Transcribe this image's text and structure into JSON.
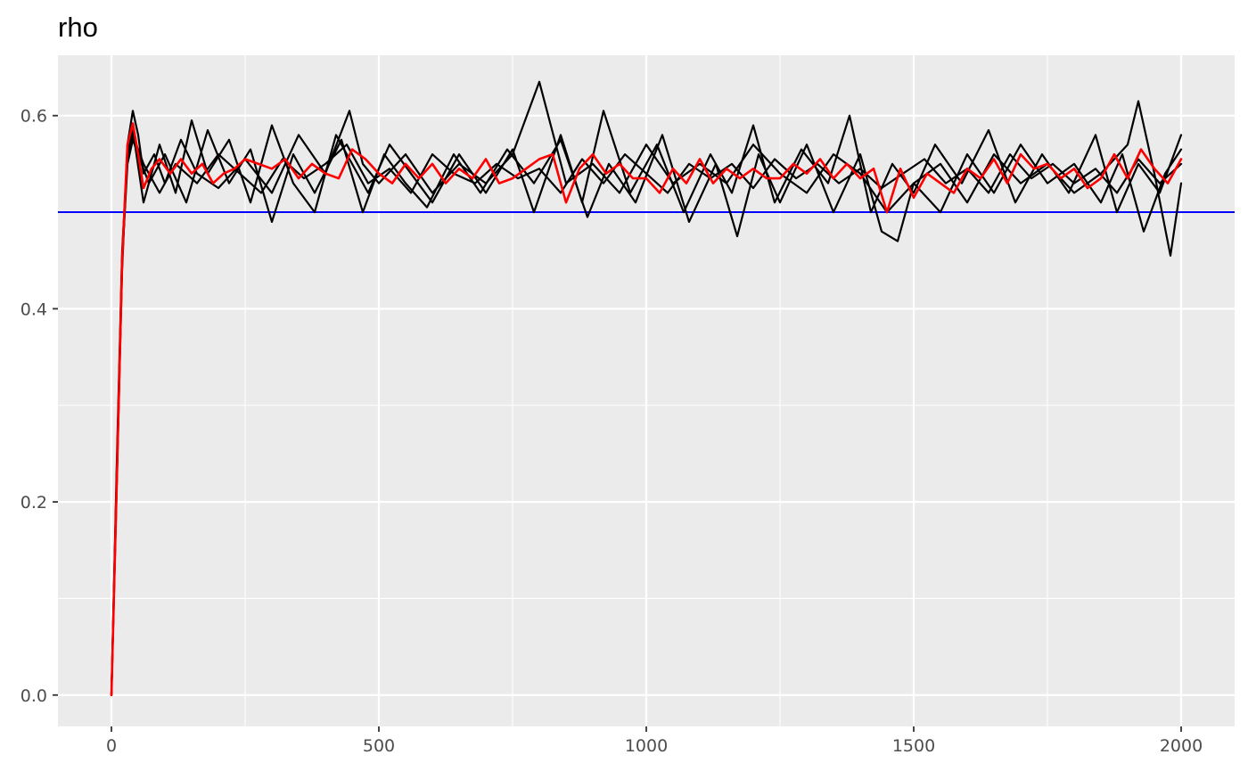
{
  "chart_data": {
    "type": "line",
    "title": "rho",
    "xlabel": "",
    "ylabel": "",
    "xlim": [
      -100,
      2100
    ],
    "ylim": [
      -0.0325,
      0.6625
    ],
    "x_ticks": [
      0,
      500,
      1000,
      1500,
      2000
    ],
    "x_tick_labels": [
      "0",
      "500",
      "1000",
      "1500",
      "2000"
    ],
    "y_ticks": [
      0.0,
      0.2,
      0.4,
      0.6
    ],
    "y_tick_labels": [
      "0.0",
      "0.2",
      "0.4",
      "0.6"
    ],
    "grid": true,
    "legend": "none",
    "reference_line": {
      "y": 0.5,
      "color": "#0000ff"
    },
    "series": [
      {
        "color": "#000000",
        "x": [
          0,
          10,
          20,
          30,
          40,
          50,
          60,
          80,
          100,
          130,
          160,
          200,
          250,
          300,
          350,
          400,
          445,
          470,
          500,
          550,
          600,
          650,
          700,
          750,
          800,
          850,
          900,
          950,
          1000,
          1050,
          1100,
          1150,
          1200,
          1250,
          1300,
          1350,
          1400,
          1450,
          1500,
          1550,
          1600,
          1650,
          1700,
          1750,
          1800,
          1850,
          1900,
          1920,
          1950,
          1980,
          2000
        ],
        "y": [
          0.0,
          0.22,
          0.44,
          0.57,
          0.605,
          0.58,
          0.54,
          0.56,
          0.53,
          0.575,
          0.54,
          0.525,
          0.555,
          0.52,
          0.58,
          0.54,
          0.605,
          0.55,
          0.53,
          0.56,
          0.52,
          0.55,
          0.53,
          0.56,
          0.635,
          0.53,
          0.55,
          0.52,
          0.57,
          0.53,
          0.55,
          0.53,
          0.57,
          0.54,
          0.52,
          0.56,
          0.54,
          0.5,
          0.53,
          0.55,
          0.51,
          0.56,
          0.53,
          0.55,
          0.52,
          0.54,
          0.57,
          0.615,
          0.54,
          0.455,
          0.53
        ]
      },
      {
        "color": "#000000",
        "x": [
          0,
          10,
          20,
          30,
          40,
          60,
          90,
          120,
          150,
          180,
          220,
          260,
          300,
          340,
          380,
          420,
          450,
          480,
          520,
          560,
          600,
          650,
          700,
          750,
          790,
          840,
          880,
          920,
          970,
          1020,
          1070,
          1120,
          1160,
          1200,
          1240,
          1290,
          1340,
          1380,
          1420,
          1460,
          1500,
          1540,
          1590,
          1640,
          1690,
          1740,
          1790,
          1840,
          1880,
          1920,
          1960,
          2000
        ],
        "y": [
          0.0,
          0.24,
          0.46,
          0.56,
          0.585,
          0.51,
          0.57,
          0.52,
          0.595,
          0.54,
          0.575,
          0.51,
          0.59,
          0.53,
          0.5,
          0.58,
          0.55,
          0.52,
          0.57,
          0.54,
          0.51,
          0.56,
          0.52,
          0.565,
          0.5,
          0.58,
          0.51,
          0.605,
          0.52,
          0.57,
          0.5,
          0.56,
          0.52,
          0.59,
          0.51,
          0.565,
          0.53,
          0.6,
          0.5,
          0.55,
          0.52,
          0.57,
          0.53,
          0.585,
          0.51,
          0.56,
          0.52,
          0.58,
          0.5,
          0.55,
          0.52,
          0.58
        ]
      },
      {
        "color": "#000000",
        "x": [
          0,
          10,
          20,
          30,
          40,
          70,
          100,
          140,
          180,
          220,
          260,
          300,
          340,
          380,
          430,
          470,
          510,
          550,
          590,
          640,
          690,
          740,
          790,
          840,
          890,
          930,
          980,
          1030,
          1080,
          1130,
          1170,
          1210,
          1250,
          1300,
          1350,
          1400,
          1440,
          1470,
          1500,
          1550,
          1600,
          1650,
          1700,
          1750,
          1800,
          1850,
          1890,
          1930,
          1970,
          2000
        ],
        "y": [
          0.0,
          0.23,
          0.45,
          0.55,
          0.575,
          0.53,
          0.56,
          0.51,
          0.585,
          0.53,
          0.565,
          0.49,
          0.56,
          0.52,
          0.575,
          0.5,
          0.56,
          0.53,
          0.505,
          0.56,
          0.52,
          0.565,
          0.53,
          0.575,
          0.495,
          0.55,
          0.51,
          0.58,
          0.49,
          0.55,
          0.475,
          0.56,
          0.51,
          0.57,
          0.5,
          0.56,
          0.48,
          0.47,
          0.53,
          0.5,
          0.56,
          0.52,
          0.57,
          0.53,
          0.55,
          0.51,
          0.56,
          0.48,
          0.54,
          0.565
        ]
      },
      {
        "color": "#000000",
        "x": [
          0,
          10,
          20,
          30,
          40,
          60,
          90,
          120,
          160,
          200,
          240,
          280,
          320,
          360,
          400,
          440,
          480,
          520,
          560,
          600,
          640,
          680,
          720,
          760,
          800,
          840,
          880,
          920,
          960,
          1000,
          1040,
          1080,
          1120,
          1160,
          1200,
          1240,
          1280,
          1320,
          1360,
          1400,
          1440,
          1480,
          1520,
          1560,
          1600,
          1640,
          1680,
          1720,
          1760,
          1800,
          1840,
          1880,
          1920,
          1960,
          2000
        ],
        "y": [
          0.0,
          0.22,
          0.45,
          0.56,
          0.58,
          0.55,
          0.52,
          0.55,
          0.53,
          0.56,
          0.54,
          0.52,
          0.555,
          0.535,
          0.55,
          0.57,
          0.53,
          0.545,
          0.52,
          0.56,
          0.54,
          0.53,
          0.55,
          0.535,
          0.545,
          0.52,
          0.555,
          0.53,
          0.56,
          0.54,
          0.52,
          0.55,
          0.535,
          0.55,
          0.525,
          0.555,
          0.535,
          0.55,
          0.53,
          0.545,
          0.525,
          0.54,
          0.555,
          0.53,
          0.545,
          0.52,
          0.56,
          0.535,
          0.55,
          0.53,
          0.545,
          0.52,
          0.555,
          0.53,
          0.55
        ]
      },
      {
        "color": "#ff0000",
        "x": [
          0,
          10,
          20,
          30,
          40,
          50,
          60,
          75,
          90,
          110,
          130,
          150,
          170,
          190,
          210,
          230,
          250,
          275,
          300,
          325,
          350,
          375,
          400,
          425,
          450,
          475,
          500,
          525,
          550,
          575,
          600,
          625,
          650,
          675,
          700,
          725,
          750,
          775,
          800,
          825,
          850,
          875,
          900,
          925,
          950,
          975,
          1000,
          1025,
          1050,
          1075,
          1100,
          1125,
          1150,
          1175,
          1200,
          1225,
          1250,
          1275,
          1300,
          1325,
          1350,
          1375,
          1400,
          1425,
          1450,
          1475,
          1500,
          1525,
          1550,
          1575,
          1600,
          1625,
          1650,
          1675,
          1700,
          1725,
          1750,
          1775,
          1800,
          1825,
          1850,
          1875,
          1900,
          1925,
          1950,
          1975,
          2000
        ],
        "y": [
          0.0,
          0.22,
          0.45,
          0.57,
          0.592,
          0.56,
          0.525,
          0.545,
          0.555,
          0.54,
          0.555,
          0.54,
          0.55,
          0.53,
          0.54,
          0.545,
          0.555,
          0.55,
          0.545,
          0.555,
          0.535,
          0.55,
          0.54,
          0.535,
          0.565,
          0.555,
          0.54,
          0.53,
          0.55,
          0.535,
          0.55,
          0.53,
          0.545,
          0.535,
          0.555,
          0.53,
          0.535,
          0.545,
          0.555,
          0.56,
          0.51,
          0.545,
          0.56,
          0.54,
          0.55,
          0.535,
          0.535,
          0.52,
          0.545,
          0.53,
          0.555,
          0.53,
          0.545,
          0.535,
          0.545,
          0.535,
          0.535,
          0.55,
          0.54,
          0.555,
          0.535,
          0.55,
          0.535,
          0.545,
          0.5,
          0.545,
          0.515,
          0.54,
          0.53,
          0.52,
          0.545,
          0.535,
          0.555,
          0.53,
          0.56,
          0.545,
          0.55,
          0.535,
          0.545,
          0.525,
          0.535,
          0.56,
          0.535,
          0.565,
          0.545,
          0.53,
          0.555
        ]
      }
    ]
  }
}
